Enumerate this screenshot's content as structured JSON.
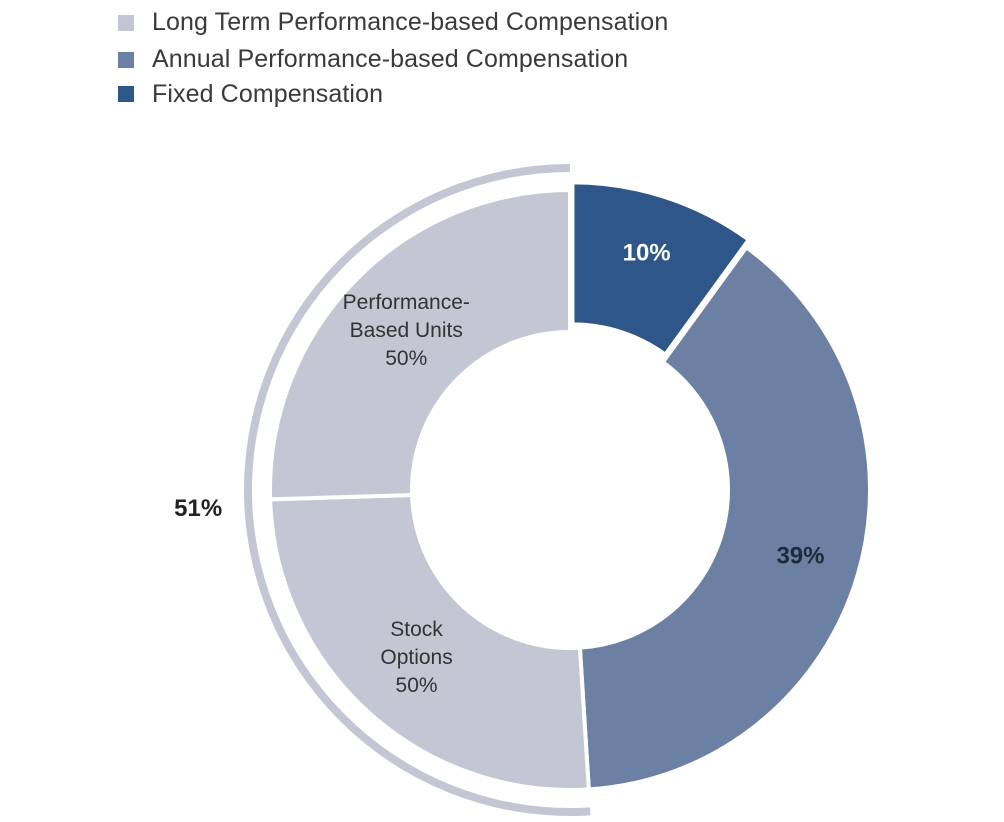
{
  "legend": {
    "items": [
      {
        "label": "Long Term Performance-based Compensation",
        "color": "#c3c7d3"
      },
      {
        "label": "Annual Performance-based Compensation",
        "color": "#6b80a3"
      },
      {
        "label": "Fixed Compensation",
        "color": "#2e5689"
      }
    ]
  },
  "chart_data": {
    "type": "pie",
    "variant": "donut",
    "slices": [
      {
        "name": "Fixed Compensation",
        "value": 10,
        "label": "10%",
        "color": "#2e5689"
      },
      {
        "name": "Annual Performance-based Compensation",
        "value": 39,
        "label": "39%",
        "color": "#6b80a3"
      },
      {
        "name": "Long Term Performance-based Compensation",
        "value": 51,
        "label": "51%",
        "color": "#c3c7d3"
      }
    ],
    "long_term_breakdown": [
      {
        "name": "Stock Options",
        "value": 50,
        "label_lines": [
          "Stock",
          "Options",
          "50%"
        ]
      },
      {
        "name": "Performance-Based Units",
        "value": 50,
        "label_lines": [
          "Performance-",
          "Based Units",
          "50%"
        ]
      }
    ],
    "legend_position": "top-left",
    "title": ""
  }
}
